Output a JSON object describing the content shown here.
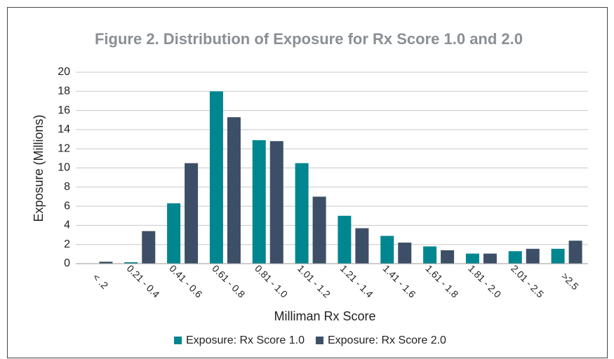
{
  "chart_data": {
    "type": "bar",
    "title": "Figure 2.  Distribution of Exposure for Rx Score 1.0 and 2.0",
    "x_label": "Milliman Rx Score",
    "y_label": "Exposure (Millions)",
    "categories": [
      "< .2",
      "0.21 - 0.4",
      "0.41 - 0.6",
      "0.61 - 0.8",
      "0.81 - 1.0",
      "1.01 - 1.2",
      "1.21 - 1.4",
      "1.41 - 1.6",
      "1.61 - 1.8",
      "1.81 - 2.0",
      "2.01 - 2.5",
      ">2.5"
    ],
    "series": [
      {
        "name": "Exposure: Rx Score 1.0",
        "color": "#00868f",
        "values": [
          0,
          0.15,
          6.3,
          18,
          12.9,
          10.5,
          5.0,
          2.9,
          1.8,
          1.05,
          1.3,
          1.55
        ]
      },
      {
        "name": "Exposure: Rx Score 2.0",
        "color": "#3d4f66",
        "values": [
          0.2,
          3.4,
          10.5,
          15.3,
          12.8,
          7.0,
          3.7,
          2.2,
          1.4,
          1.05,
          1.55,
          2.4
        ]
      }
    ],
    "ylim": [
      0,
      20
    ],
    "yticks": [
      0,
      2,
      4,
      6,
      8,
      10,
      12,
      14,
      16,
      18,
      20
    ],
    "grid": true,
    "legend": "bottom"
  }
}
